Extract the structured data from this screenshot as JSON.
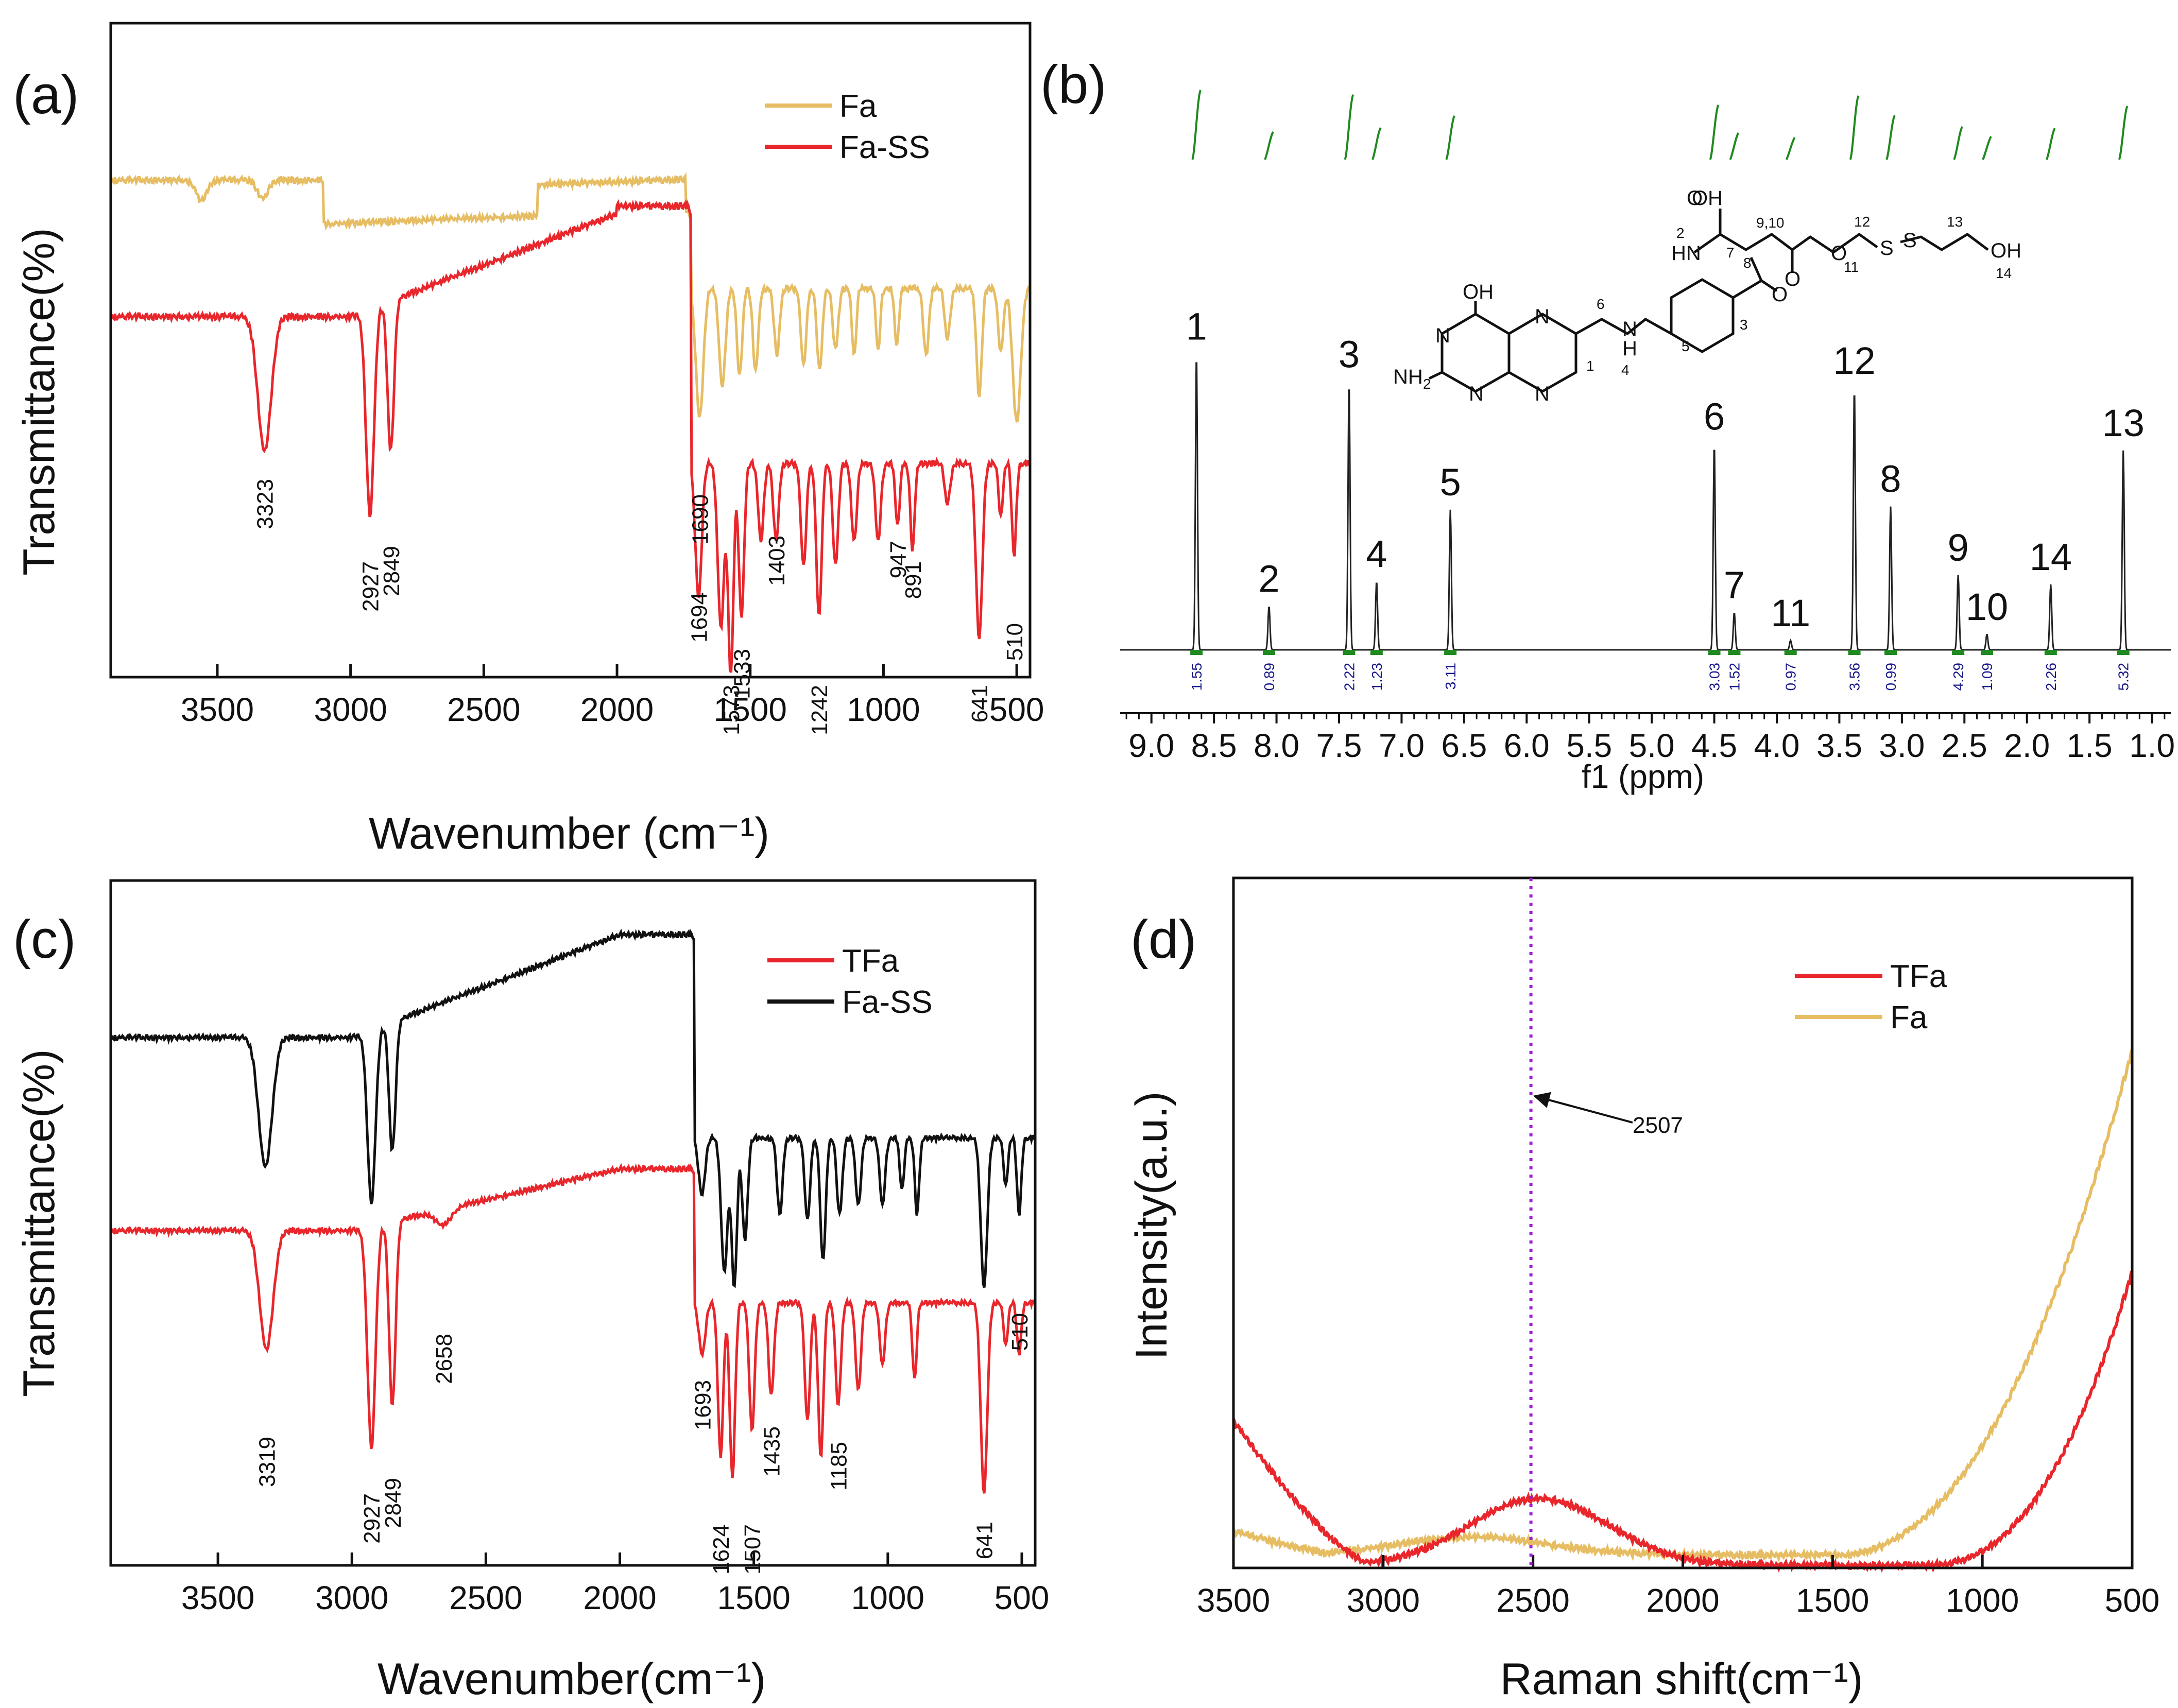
{
  "colors": {
    "fa": "#e6bd63",
    "red": "#e8262b",
    "black": "#111111",
    "nmr": "#222222",
    "integral": "#1f8a1f",
    "dotted": "#9b1fd1"
  },
  "chart_data": [
    {
      "panel": "(a)",
      "type": "line",
      "xlabel": "Wavenumber (cm⁻¹)",
      "ylabel": "Transmittance(%)",
      "xlim": [
        3900,
        450
      ],
      "ticks": [
        3500,
        3000,
        2500,
        2000,
        1500,
        1000,
        500
      ],
      "tick_labels": [
        "3500",
        "3000",
        "2500",
        "2000",
        "1500",
        "1000",
        "500"
      ],
      "legend": [
        "Fa",
        "Fa-SS"
      ],
      "peaks": [
        {
          "x": 3323,
          "label": "3323",
          "series": "Fa-SS"
        },
        {
          "x": 2927,
          "label": "2927",
          "series": "Fa-SS"
        },
        {
          "x": 2849,
          "label": "2849",
          "series": "Fa-SS"
        },
        {
          "x": 1690,
          "label": "1690",
          "series": "Fa"
        },
        {
          "x": 1694,
          "label": "1694",
          "series": "Fa-SS"
        },
        {
          "x": 1573,
          "label": "1573",
          "series": "Fa-SS"
        },
        {
          "x": 1533,
          "label": "1533",
          "series": "Fa-SS"
        },
        {
          "x": 1403,
          "label": "1403",
          "series": "Fa-SS"
        },
        {
          "x": 1242,
          "label": "1242",
          "series": "Fa-SS"
        },
        {
          "x": 947,
          "label": "947",
          "series": "Fa-SS"
        },
        {
          "x": 891,
          "label": "891",
          "series": "Fa-SS"
        },
        {
          "x": 641,
          "label": "641",
          "series": "Fa-SS"
        },
        {
          "x": 510,
          "label": "510",
          "series": "Fa-SS"
        }
      ]
    },
    {
      "panel": "(b)",
      "type": "line",
      "xlabel": "f1 (ppm)",
      "xlim": [
        9.25,
        0.85
      ],
      "ticks": [
        9.0,
        8.5,
        8.0,
        7.5,
        7.0,
        6.5,
        6.0,
        5.5,
        5.0,
        4.5,
        4.0,
        3.5,
        3.0,
        2.5,
        2.0,
        1.5,
        1.0
      ],
      "tick_labels": [
        "9.0",
        "8.5",
        "8.0",
        "7.5",
        "7.0",
        "6.5",
        "6.0",
        "5.5",
        "5.0",
        "4.5",
        "4.0",
        "3.5",
        "3.0",
        "2.5",
        "2.0",
        "1.5",
        "1.0"
      ],
      "peaks": [
        {
          "label": "1",
          "ppm": 8.64,
          "height": 0.95,
          "integral": "1.55"
        },
        {
          "label": "2",
          "ppm": 8.06,
          "height": 0.14,
          "integral": "0.89"
        },
        {
          "label": "3",
          "ppm": 7.42,
          "height": 0.86,
          "integral": "2.22"
        },
        {
          "label": "4",
          "ppm": 7.2,
          "height": 0.22,
          "integral": "1.23"
        },
        {
          "label": "5",
          "ppm": 6.61,
          "height": 0.45,
          "integral": "3.11"
        },
        {
          "label": "6",
          "ppm": 4.5,
          "height": 0.66,
          "integral": "3.03"
        },
        {
          "label": "7",
          "ppm": 4.34,
          "height": 0.12,
          "integral": "1.52"
        },
        {
          "label": "8",
          "ppm": 3.09,
          "height": 0.46,
          "integral": "0.99"
        },
        {
          "label": "9",
          "ppm": 2.55,
          "height": 0.24,
          "integral": "4.29"
        },
        {
          "label": "10",
          "ppm": 2.32,
          "height": 0.05,
          "integral": "1.09"
        },
        {
          "label": "11",
          "ppm": 3.89,
          "height": 0.03,
          "integral": "0.97"
        },
        {
          "label": "12",
          "ppm": 3.38,
          "height": 0.84,
          "integral": "3.56"
        },
        {
          "label": "13",
          "ppm": 1.23,
          "height": 0.64,
          "integral": "5.32"
        },
        {
          "label": "14",
          "ppm": 1.81,
          "height": 0.21,
          "integral": "2.26"
        }
      ],
      "structure_labels": {
        "oh_top": "OH",
        "oh": "OH",
        "n": "N",
        "nh": "N",
        "h": "H",
        "hn": "HN",
        "o": "O",
        "s": "S",
        "nh2": "NH",
        "sub2": "2",
        "num1": "1",
        "num2": "2",
        "num3": "3",
        "num4": "4",
        "num5": "5",
        "num6": "6",
        "num7": "7",
        "num8": "8",
        "num910": "9,10",
        "num11": "11",
        "num12": "12",
        "num13": "13",
        "num14": "14"
      }
    },
    {
      "panel": "(c)",
      "type": "line",
      "xlabel": "Wavenumber(cm⁻¹)",
      "ylabel": "Transmittance(%)",
      "xlim": [
        3900,
        450
      ],
      "ticks": [
        3500,
        3000,
        2500,
        2000,
        1500,
        1000,
        500
      ],
      "tick_labels": [
        "3500",
        "3000",
        "2500",
        "2000",
        "1500",
        "1000",
        "500"
      ],
      "legend": [
        "TFa",
        "Fa-SS"
      ],
      "peaks": [
        {
          "x": 3319,
          "label": "3319"
        },
        {
          "x": 2927,
          "label": "2927"
        },
        {
          "x": 2849,
          "label": "2849"
        },
        {
          "x": 2658,
          "label": "2658"
        },
        {
          "x": 1693,
          "label": "1693"
        },
        {
          "x": 1624,
          "label": "1624"
        },
        {
          "x": 1507,
          "label": "1507"
        },
        {
          "x": 1435,
          "label": "1435"
        },
        {
          "x": 1185,
          "label": "1185"
        },
        {
          "x": 641,
          "label": "641"
        },
        {
          "x": 510,
          "label": "510"
        }
      ]
    },
    {
      "panel": "(d)",
      "type": "line",
      "xlabel": "Raman shift(cm⁻¹)",
      "ylabel": "Intensity(a.u.)",
      "xlim": [
        3500,
        500
      ],
      "ticks": [
        3500,
        3000,
        2500,
        2000,
        1500,
        1000,
        500
      ],
      "tick_labels": [
        "3500",
        "3000",
        "2500",
        "2000",
        "1500",
        "1000",
        "500"
      ],
      "legend": [
        "TFa",
        "Fa"
      ],
      "marker": {
        "x": 2507,
        "label": "2507"
      }
    }
  ]
}
